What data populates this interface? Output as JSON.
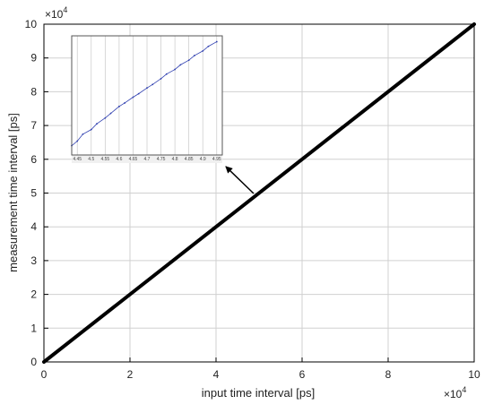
{
  "chart_data": [
    {
      "type": "line",
      "xlabel": "input time interval [ps]",
      "ylabel": "measurement time interval [ps]",
      "x_exponent_label": "×10",
      "x_exponent_power": "4",
      "y_exponent_label": "×10",
      "y_exponent_power": "4",
      "xlim": [
        0,
        10
      ],
      "ylim": [
        0,
        10
      ],
      "xticks": [
        "0",
        "2",
        "4",
        "6",
        "8",
        "10"
      ],
      "yticks": [
        "0",
        "1",
        "2",
        "3",
        "4",
        "5",
        "6",
        "7",
        "8",
        "9",
        "10"
      ],
      "grid": true,
      "series": [
        {
          "color": "#000000",
          "x": [
            0,
            10
          ],
          "y": [
            0,
            10
          ]
        }
      ],
      "annotation": {
        "type": "arrow",
        "from_xy": [
          6.2,
          5.2
        ],
        "to_xy": [
          5.4,
          6.0
        ]
      }
    },
    {
      "type": "line",
      "inset": true,
      "xticks": [
        "4.45",
        "4.5",
        "4.55",
        "4.6",
        "4.65",
        "4.7",
        "4.75",
        "4.8",
        "4.85",
        "4.9",
        "4.95"
      ],
      "xlim": [
        4.43,
        4.97
      ],
      "ylim": [
        0,
        1
      ],
      "grid": true,
      "series": [
        {
          "color": "#3040b0",
          "x": [
            4.43,
            4.45,
            4.47,
            4.5,
            4.52,
            4.55,
            4.57,
            4.6,
            4.62,
            4.65,
            4.67,
            4.7,
            4.72,
            4.75,
            4.77,
            4.8,
            4.82,
            4.85,
            4.87,
            4.9,
            4.92,
            4.95
          ],
          "y": [
            0.08,
            0.12,
            0.18,
            0.22,
            0.27,
            0.32,
            0.36,
            0.42,
            0.45,
            0.5,
            0.53,
            0.58,
            0.61,
            0.66,
            0.7,
            0.74,
            0.78,
            0.82,
            0.86,
            0.9,
            0.94,
            0.98
          ]
        }
      ]
    }
  ]
}
